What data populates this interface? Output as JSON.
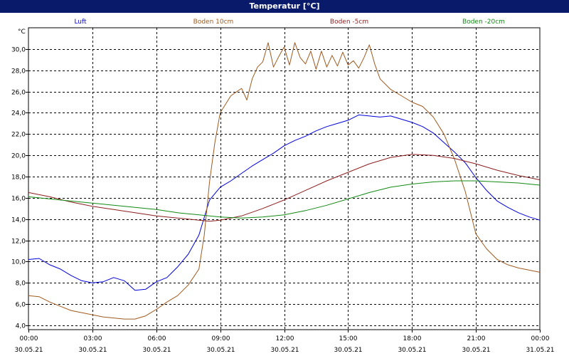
{
  "window": {
    "title": "Temperatur [°C]"
  },
  "chart_data": {
    "type": "line",
    "title": "Temperatur [°C]",
    "ylabel": "°C",
    "xlabel": "",
    "ylim": [
      3.6,
      32.0
    ],
    "xlim_hours": [
      0,
      24
    ],
    "grid": true,
    "legend_position": "top",
    "y_ticks": [
      "4,0",
      "6,0",
      "8,0",
      "10,0",
      "12,0",
      "14,0",
      "16,0",
      "18,0",
      "20,0",
      "22,0",
      "24,0",
      "26,0",
      "28,0",
      "30,0"
    ],
    "y_tick_values": [
      4,
      6,
      8,
      10,
      12,
      14,
      16,
      18,
      20,
      22,
      24,
      26,
      28,
      30
    ],
    "x_ticks": [
      {
        "time": "00:00",
        "date": "30.05.21"
      },
      {
        "time": "03:00",
        "date": "30.05.21"
      },
      {
        "time": "06:00",
        "date": "30.05.21"
      },
      {
        "time": "09:00",
        "date": "30.05.21"
      },
      {
        "time": "12:00",
        "date": "30.05.21"
      },
      {
        "time": "15:00",
        "date": "30.05.21"
      },
      {
        "time": "18:00",
        "date": "30.05.21"
      },
      {
        "time": "21:00",
        "date": "30.05.21"
      },
      {
        "time": "00:00",
        "date": "31.05.21"
      }
    ],
    "x_tick_hours": [
      0,
      3,
      6,
      9,
      12,
      15,
      18,
      21,
      24
    ],
    "series": [
      {
        "name": "Luft",
        "color": "#0000dd",
        "x": [
          0,
          0.5,
          1,
          1.5,
          2,
          2.5,
          3,
          3.5,
          4,
          4.5,
          5,
          5.5,
          6,
          6.5,
          7,
          7.5,
          8,
          8.5,
          9,
          9.5,
          10,
          10.5,
          11,
          11.5,
          12,
          12.5,
          13,
          13.5,
          14,
          14.5,
          15,
          15.5,
          16,
          16.5,
          17,
          17.5,
          18,
          18.5,
          19,
          19.5,
          20,
          20.5,
          21,
          21.5,
          22,
          22.5,
          23,
          23.5,
          24
        ],
        "values": [
          10.2,
          10.3,
          9.7,
          9.3,
          8.7,
          8.2,
          8.0,
          8.1,
          8.5,
          8.2,
          7.3,
          7.4,
          8.1,
          8.5,
          9.5,
          10.7,
          12.5,
          15.8,
          17.0,
          17.6,
          18.3,
          19.0,
          19.6,
          20.2,
          20.9,
          21.4,
          21.8,
          22.3,
          22.7,
          23.0,
          23.3,
          23.8,
          23.7,
          23.6,
          23.7,
          23.4,
          23.1,
          22.7,
          22.1,
          21.2,
          20.3,
          19.3,
          17.9,
          16.7,
          15.7,
          15.1,
          14.6,
          14.2,
          13.9
        ]
      },
      {
        "name": "Boden 10cm",
        "color": "#a05a1e",
        "x": [
          0,
          0.5,
          1,
          1.5,
          2,
          2.5,
          3,
          3.5,
          4,
          4.5,
          5,
          5.5,
          6,
          6.5,
          7,
          7.5,
          8,
          8.25,
          8.5,
          8.75,
          9,
          9.5,
          10,
          10.25,
          10.5,
          10.75,
          11,
          11.25,
          11.5,
          11.75,
          12,
          12.25,
          12.5,
          12.75,
          13,
          13.25,
          13.5,
          13.75,
          14,
          14.25,
          14.5,
          14.75,
          15,
          15.25,
          15.5,
          15.75,
          16,
          16.25,
          16.5,
          17,
          17.5,
          18,
          18.5,
          19,
          19.5,
          20,
          20.5,
          21,
          21.5,
          22,
          22.5,
          23,
          23.5,
          24
        ],
        "values": [
          6.8,
          6.7,
          6.2,
          5.8,
          5.4,
          5.2,
          5.0,
          4.8,
          4.7,
          4.6,
          4.6,
          4.9,
          5.5,
          6.2,
          6.8,
          7.8,
          9.3,
          12.5,
          17.5,
          21.2,
          24.0,
          25.6,
          26.3,
          25.2,
          27.2,
          28.3,
          28.8,
          30.6,
          28.3,
          29.3,
          30.2,
          28.5,
          30.6,
          29.2,
          28.6,
          29.8,
          28.1,
          29.8,
          28.3,
          29.4,
          28.4,
          29.7,
          28.5,
          28.9,
          28.2,
          29.2,
          30.4,
          28.6,
          27.2,
          26.2,
          25.6,
          25.0,
          24.6,
          23.6,
          22.0,
          19.6,
          16.6,
          12.6,
          11.2,
          10.2,
          9.7,
          9.4,
          9.2,
          9.0
        ]
      },
      {
        "name": "Boden -5cm",
        "color": "#8c1e1e",
        "x": [
          0,
          1,
          2,
          3,
          4,
          5,
          6,
          7,
          8,
          8.5,
          9,
          10,
          11,
          12,
          13,
          14,
          15,
          16,
          17,
          18,
          19,
          20,
          21,
          22,
          23,
          24
        ],
        "values": [
          16.5,
          16.1,
          15.6,
          15.2,
          14.9,
          14.6,
          14.3,
          14.1,
          13.9,
          13.8,
          13.9,
          14.3,
          15.0,
          15.8,
          16.7,
          17.6,
          18.4,
          19.2,
          19.8,
          20.1,
          20.0,
          19.7,
          19.2,
          18.6,
          18.1,
          17.7
        ]
      },
      {
        "name": "Boden -20cm",
        "color": "#138a13",
        "x": [
          0,
          1,
          2,
          3,
          4,
          5,
          6,
          7,
          8,
          9,
          10,
          11,
          12,
          13,
          14,
          15,
          16,
          17,
          18,
          19,
          20,
          21,
          22,
          23,
          24
        ],
        "values": [
          16.1,
          15.9,
          15.7,
          15.5,
          15.3,
          15.1,
          14.9,
          14.6,
          14.4,
          14.2,
          14.1,
          14.2,
          14.4,
          14.8,
          15.3,
          15.9,
          16.5,
          17.0,
          17.3,
          17.5,
          17.6,
          17.6,
          17.5,
          17.4,
          17.2
        ]
      }
    ]
  }
}
